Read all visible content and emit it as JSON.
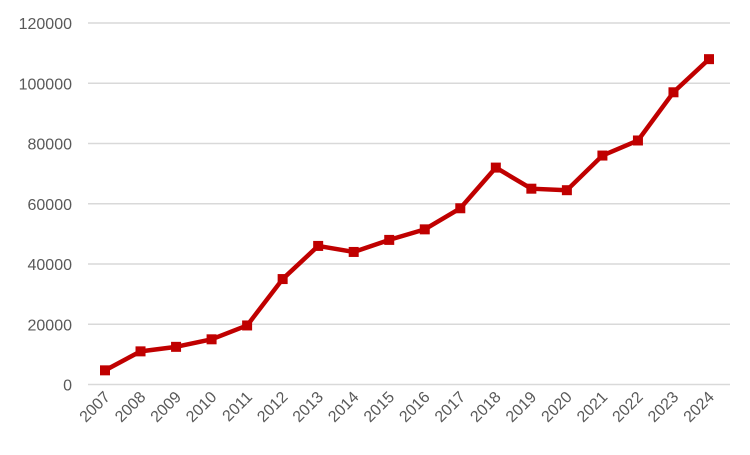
{
  "chart_data": {
    "type": "line",
    "title": "",
    "xlabel": "",
    "ylabel": "",
    "categories": [
      "2007",
      "2008",
      "2009",
      "2010",
      "2011",
      "2012",
      "2013",
      "2014",
      "2015",
      "2016",
      "2017",
      "2018",
      "2019",
      "2020",
      "2021",
      "2022",
      "2023",
      "2024"
    ],
    "series": [
      {
        "values": [
          4700,
          11000,
          12500,
          15000,
          19600,
          35000,
          46000,
          44000,
          48000,
          51500,
          58500,
          72000,
          65000,
          64500,
          76000,
          81000,
          97000,
          108000
        ],
        "color": "#C00000",
        "marker": "square"
      }
    ],
    "ylim": [
      0,
      120000
    ],
    "yticks": [
      "0",
      "20000",
      "40000",
      "60000",
      "80000",
      "100000",
      "120000"
    ],
    "grid": true,
    "legend": "none"
  }
}
